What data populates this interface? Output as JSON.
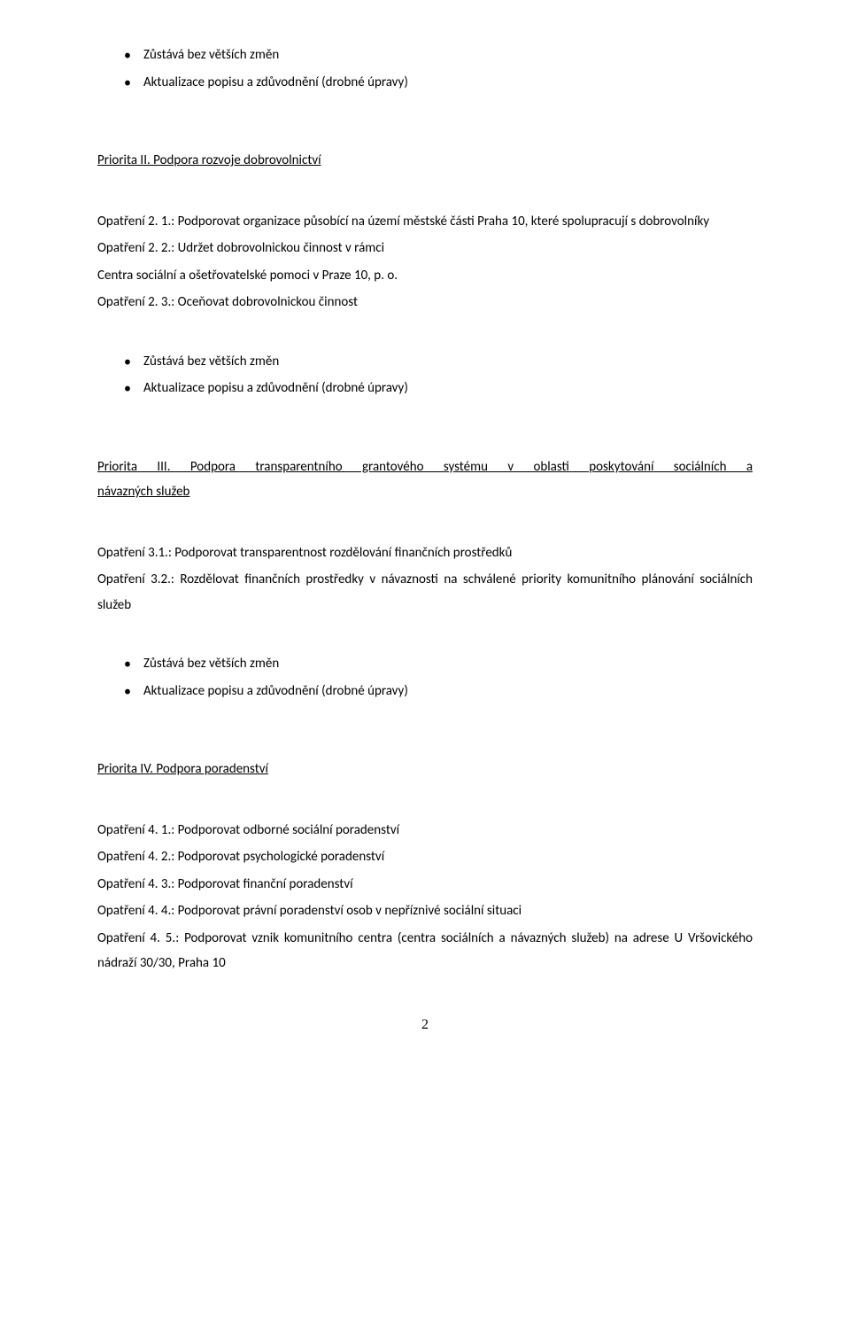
{
  "bullets1": {
    "items": [
      "Zůstává bez větších změn",
      "Aktualizace popisu a zdůvodnění (drobné úpravy)"
    ]
  },
  "priority2": {
    "heading": "Priorita II. Podpora rozvoje dobrovolnictví",
    "p1": "Opatření 2. 1.: Podporovat organizace působící na území městské části Praha 10, které spolupracují s dobrovolníky",
    "p2": "Opatření 2. 2.: Udržet dobrovolnickou činnost v rámci",
    "p3": "Centra sociální a ošetřovatelské pomoci v Praze 10, p. o.",
    "p4": "Opatření 2. 3.: Oceňovat dobrovolnickou činnost"
  },
  "bullets2": {
    "items": [
      "Zůstává bez větších změn",
      "Aktualizace popisu a zdůvodnění (drobné úpravy)"
    ]
  },
  "priority3": {
    "heading_line1": "Priorita III. Podpora transparentního grantového systému v oblasti poskytování sociálních a",
    "heading_line2": "návazných služeb",
    "p1": "Opatření 3.1.: Podporovat transparentnost rozdělování finančních prostředků",
    "p2": "Opatření 3.2.: Rozdělovat finančních prostředky v návaznosti na schválené priority komunitního plánování sociálních služeb"
  },
  "bullets3": {
    "items": [
      "Zůstává bez větších změn",
      "Aktualizace popisu a zdůvodnění (drobné úpravy)"
    ]
  },
  "priority4": {
    "heading": "Priorita IV. Podpora poradenství",
    "p1": "Opatření 4. 1.: Podporovat odborné sociální poradenství",
    "p2": "Opatření 4. 2.: Podporovat psychologické poradenství",
    "p3": "Opatření 4. 3.: Podporovat finanční poradenství",
    "p4": "Opatření 4. 4.: Podporovat právní poradenství osob v nepříznivé sociální situaci",
    "p5": "Opatření 4. 5.: Podporovat vznik komunitního centra (centra sociálních a návazných služeb) na adrese U Vršovického nádraží 30/30, Praha 10"
  },
  "pageNumber": "2"
}
